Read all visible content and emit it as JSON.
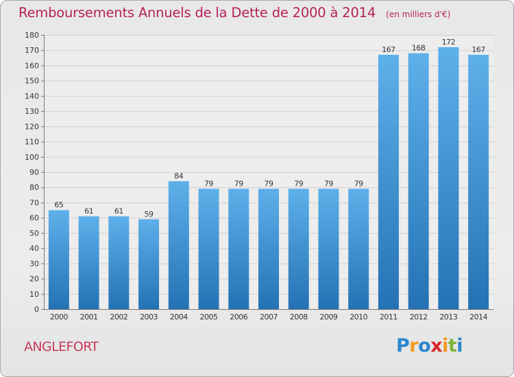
{
  "title": "Remboursements Annuels de la Dette de 2000 à 2014",
  "unit_label": "(en milliers d'€)",
  "commune": "ANGLEFORT",
  "logo_text": "Proxiti",
  "colors": {
    "title": "#b5215a",
    "bar_top": "#5eb0ea",
    "bar_bottom": "#2472b4",
    "grid": "#d0d0d0",
    "axis_text": "#333333"
  },
  "chart_data": {
    "type": "bar",
    "title": "Remboursements Annuels de la Dette de 2000 à 2014",
    "xlabel": "",
    "ylabel": "",
    "categories": [
      "2000",
      "2001",
      "2002",
      "2003",
      "2004",
      "2005",
      "2006",
      "2007",
      "2008",
      "2009",
      "2010",
      "2011",
      "2012",
      "2013",
      "2014"
    ],
    "values": [
      65,
      61,
      61,
      59,
      84,
      79,
      79,
      79,
      79,
      79,
      79,
      167,
      168,
      172,
      167
    ],
    "ylim": [
      0,
      180
    ],
    "yticks": [
      0,
      10,
      20,
      30,
      40,
      50,
      60,
      70,
      80,
      90,
      100,
      110,
      120,
      130,
      140,
      150,
      160,
      170,
      180
    ],
    "grid": true,
    "data_labels": true
  }
}
